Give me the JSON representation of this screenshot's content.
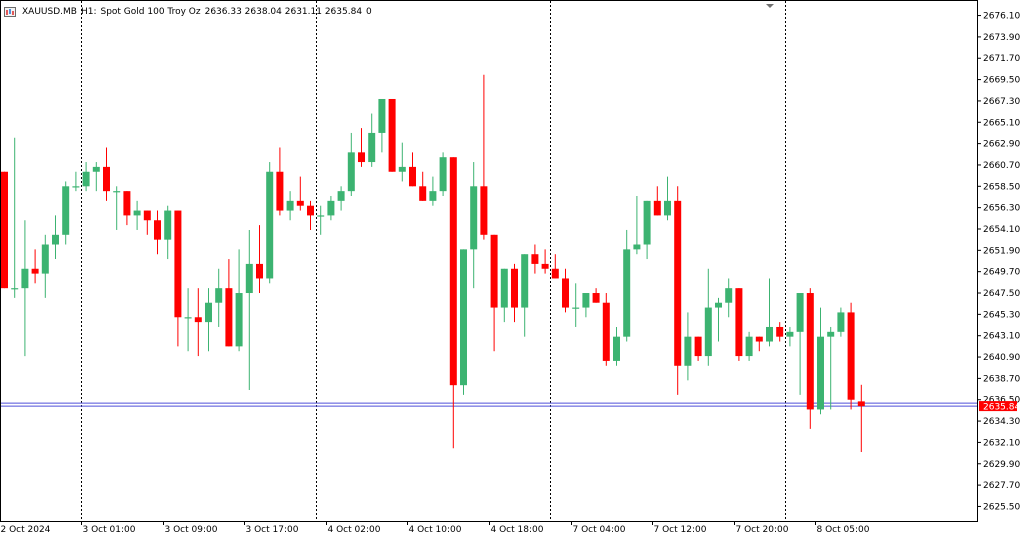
{
  "window": {
    "symbol": "XAUUSD.MB",
    "timeframe": "H1:",
    "description": "Spot Gold 100 Troy Oz",
    "ohlc": "2636.33 2638.04 2631.11 2635.84",
    "extra": "0"
  },
  "colors": {
    "bull": "#3cb371",
    "bear": "#ff0000",
    "bid_line": "#4f4fd9",
    "price_tag": "#ff0000"
  },
  "chart_data": {
    "type": "candlestick",
    "ylim": [
      2624.0,
      2677.6
    ],
    "y_ticks": [
      "2676.10",
      "2673.90",
      "2671.70",
      "2669.50",
      "2667.30",
      "2665.10",
      "2662.90",
      "2660.70",
      "2658.50",
      "2656.30",
      "2654.10",
      "2651.90",
      "2649.70",
      "2647.50",
      "2645.30",
      "2643.10",
      "2640.90",
      "2638.70",
      "2636.50",
      "2634.30",
      "2632.10",
      "2629.90",
      "2627.70",
      "2625.50"
    ],
    "x_labels": [
      "2 Oct 2024",
      "3 Oct 01:00",
      "3 Oct 09:00",
      "3 Oct 17:00",
      "4 Oct 02:00",
      "4 Oct 10:00",
      "4 Oct 18:00",
      "7 Oct 04:00",
      "7 Oct 12:00",
      "7 Oct 20:00",
      "8 Oct 05:00"
    ],
    "current_price": "2635.84",
    "bid_line": 2636.0,
    "separators": [
      8,
      31,
      54,
      77
    ],
    "candles": [
      {
        "o": 2660.0,
        "h": 2660.0,
        "l": 2648.0,
        "c": 2648.0
      },
      {
        "o": 2648.0,
        "h": 2663.5,
        "l": 2647.0,
        "c": 2648.0
      },
      {
        "o": 2648.0,
        "h": 2655.0,
        "l": 2641.0,
        "c": 2650.0
      },
      {
        "o": 2650.0,
        "h": 2652.0,
        "l": 2648.5,
        "c": 2649.5
      },
      {
        "o": 2649.5,
        "h": 2653.5,
        "l": 2647.0,
        "c": 2652.5
      },
      {
        "o": 2652.5,
        "h": 2655.5,
        "l": 2651.0,
        "c": 2653.5
      },
      {
        "o": 2653.5,
        "h": 2659.0,
        "l": 2652.5,
        "c": 2658.5
      },
      {
        "o": 2658.5,
        "h": 2660.0,
        "l": 2658.0,
        "c": 2658.5
      },
      {
        "o": 2658.5,
        "h": 2661.0,
        "l": 2658.0,
        "c": 2660.0
      },
      {
        "o": 2660.0,
        "h": 2661.0,
        "l": 2658.0,
        "c": 2660.5
      },
      {
        "o": 2660.5,
        "h": 2662.5,
        "l": 2657.0,
        "c": 2658.0
      },
      {
        "o": 2658.0,
        "h": 2658.5,
        "l": 2654.0,
        "c": 2658.0
      },
      {
        "o": 2658.0,
        "h": 2658.0,
        "l": 2654.5,
        "c": 2655.5
      },
      {
        "o": 2655.5,
        "h": 2657.0,
        "l": 2654.0,
        "c": 2656.0
      },
      {
        "o": 2656.0,
        "h": 2656.0,
        "l": 2653.5,
        "c": 2655.0
      },
      {
        "o": 2655.0,
        "h": 2656.0,
        "l": 2651.5,
        "c": 2653.0
      },
      {
        "o": 2653.0,
        "h": 2656.5,
        "l": 2651.0,
        "c": 2656.0
      },
      {
        "o": 2656.0,
        "h": 2656.0,
        "l": 2642.0,
        "c": 2645.0
      },
      {
        "o": 2645.0,
        "h": 2648.0,
        "l": 2641.5,
        "c": 2645.0
      },
      {
        "o": 2645.0,
        "h": 2648.0,
        "l": 2641.0,
        "c": 2644.5
      },
      {
        "o": 2644.5,
        "h": 2648.0,
        "l": 2641.5,
        "c": 2646.5
      },
      {
        "o": 2646.5,
        "h": 2650.0,
        "l": 2644.0,
        "c": 2648.0
      },
      {
        "o": 2648.0,
        "h": 2651.0,
        "l": 2642.0,
        "c": 2642.0
      },
      {
        "o": 2642.0,
        "h": 2652.0,
        "l": 2641.5,
        "c": 2647.5
      },
      {
        "o": 2647.5,
        "h": 2654.0,
        "l": 2637.5,
        "c": 2650.5
      },
      {
        "o": 2650.5,
        "h": 2654.5,
        "l": 2647.5,
        "c": 2649.0
      },
      {
        "o": 2649.0,
        "h": 2661.0,
        "l": 2648.5,
        "c": 2660.0
      },
      {
        "o": 2660.0,
        "h": 2662.5,
        "l": 2655.5,
        "c": 2656.0
      },
      {
        "o": 2656.0,
        "h": 2658.0,
        "l": 2655.0,
        "c": 2657.0
      },
      {
        "o": 2657.0,
        "h": 2659.5,
        "l": 2656.0,
        "c": 2656.5
      },
      {
        "o": 2656.5,
        "h": 2657.0,
        "l": 2654.0,
        "c": 2655.5
      },
      {
        "o": 2655.5,
        "h": 2656.5,
        "l": 2653.5,
        "c": 2655.5
      },
      {
        "o": 2655.5,
        "h": 2657.5,
        "l": 2655.0,
        "c": 2657.0
      },
      {
        "o": 2657.0,
        "h": 2658.5,
        "l": 2656.0,
        "c": 2658.0
      },
      {
        "o": 2658.0,
        "h": 2664.0,
        "l": 2657.5,
        "c": 2662.0
      },
      {
        "o": 2662.0,
        "h": 2664.5,
        "l": 2660.5,
        "c": 2661.0
      },
      {
        "o": 2661.0,
        "h": 2666.0,
        "l": 2660.5,
        "c": 2664.0
      },
      {
        "o": 2664.0,
        "h": 2667.5,
        "l": 2662.0,
        "c": 2667.5
      },
      {
        "o": 2667.5,
        "h": 2667.5,
        "l": 2660.0,
        "c": 2660.0
      },
      {
        "o": 2660.0,
        "h": 2663.0,
        "l": 2659.0,
        "c": 2660.5
      },
      {
        "o": 2660.5,
        "h": 2662.0,
        "l": 2658.5,
        "c": 2658.5
      },
      {
        "o": 2658.5,
        "h": 2660.0,
        "l": 2657.0,
        "c": 2657.0
      },
      {
        "o": 2657.0,
        "h": 2659.5,
        "l": 2656.5,
        "c": 2658.0
      },
      {
        "o": 2658.0,
        "h": 2662.0,
        "l": 2657.5,
        "c": 2661.5
      },
      {
        "o": 2661.5,
        "h": 2661.5,
        "l": 2631.5,
        "c": 2638.0
      },
      {
        "o": 2638.0,
        "h": 2652.0,
        "l": 2637.0,
        "c": 2652.0
      },
      {
        "o": 2652.0,
        "h": 2661.0,
        "l": 2648.0,
        "c": 2658.5
      },
      {
        "o": 2658.5,
        "h": 2670.0,
        "l": 2653.0,
        "c": 2653.5
      },
      {
        "o": 2653.5,
        "h": 2653.5,
        "l": 2641.5,
        "c": 2646.0
      },
      {
        "o": 2646.0,
        "h": 2650.0,
        "l": 2644.5,
        "c": 2650.0
      },
      {
        "o": 2650.0,
        "h": 2650.5,
        "l": 2644.5,
        "c": 2646.0
      },
      {
        "o": 2646.0,
        "h": 2651.5,
        "l": 2643.0,
        "c": 2651.5
      },
      {
        "o": 2651.5,
        "h": 2652.5,
        "l": 2649.5,
        "c": 2650.5
      },
      {
        "o": 2650.5,
        "h": 2652.0,
        "l": 2649.5,
        "c": 2650.0
      },
      {
        "o": 2650.0,
        "h": 2651.5,
        "l": 2649.0,
        "c": 2649.0
      },
      {
        "o": 2649.0,
        "h": 2650.0,
        "l": 2645.5,
        "c": 2646.0
      },
      {
        "o": 2646.0,
        "h": 2648.5,
        "l": 2644.0,
        "c": 2646.0
      },
      {
        "o": 2646.0,
        "h": 2647.5,
        "l": 2645.0,
        "c": 2647.5
      },
      {
        "o": 2647.5,
        "h": 2648.0,
        "l": 2646.5,
        "c": 2646.5
      },
      {
        "o": 2646.5,
        "h": 2647.5,
        "l": 2640.0,
        "c": 2640.5
      },
      {
        "o": 2640.5,
        "h": 2644.0,
        "l": 2640.0,
        "c": 2643.0
      },
      {
        "o": 2643.0,
        "h": 2654.0,
        "l": 2642.5,
        "c": 2652.0
      },
      {
        "o": 2652.0,
        "h": 2657.5,
        "l": 2651.5,
        "c": 2652.5
      },
      {
        "o": 2652.5,
        "h": 2657.0,
        "l": 2651.0,
        "c": 2657.0
      },
      {
        "o": 2657.0,
        "h": 2658.5,
        "l": 2655.5,
        "c": 2655.5
      },
      {
        "o": 2655.5,
        "h": 2659.5,
        "l": 2655.0,
        "c": 2657.0
      },
      {
        "o": 2657.0,
        "h": 2658.5,
        "l": 2637.0,
        "c": 2640.0
      },
      {
        "o": 2640.0,
        "h": 2645.5,
        "l": 2638.5,
        "c": 2643.0
      },
      {
        "o": 2643.0,
        "h": 2643.0,
        "l": 2640.5,
        "c": 2641.0
      },
      {
        "o": 2641.0,
        "h": 2650.0,
        "l": 2640.0,
        "c": 2646.0
      },
      {
        "o": 2646.0,
        "h": 2647.0,
        "l": 2642.5,
        "c": 2646.5
      },
      {
        "o": 2646.5,
        "h": 2649.0,
        "l": 2645.0,
        "c": 2648.0
      },
      {
        "o": 2648.0,
        "h": 2648.0,
        "l": 2640.5,
        "c": 2641.0
      },
      {
        "o": 2641.0,
        "h": 2643.5,
        "l": 2640.5,
        "c": 2643.0
      },
      {
        "o": 2643.0,
        "h": 2643.0,
        "l": 2641.5,
        "c": 2642.5
      },
      {
        "o": 2642.5,
        "h": 2649.0,
        "l": 2642.0,
        "c": 2644.0
      },
      {
        "o": 2644.0,
        "h": 2644.5,
        "l": 2642.5,
        "c": 2643.0
      },
      {
        "o": 2643.0,
        "h": 2644.0,
        "l": 2642.0,
        "c": 2643.5
      },
      {
        "o": 2643.5,
        "h": 2647.5,
        "l": 2637.0,
        "c": 2647.5
      },
      {
        "o": 2647.5,
        "h": 2648.0,
        "l": 2633.5,
        "c": 2635.5
      },
      {
        "o": 2635.5,
        "h": 2646.0,
        "l": 2635.0,
        "c": 2643.0
      },
      {
        "o": 2643.0,
        "h": 2644.0,
        "l": 2635.5,
        "c": 2643.5
      },
      {
        "o": 2643.5,
        "h": 2646.0,
        "l": 2643.0,
        "c": 2645.5
      },
      {
        "o": 2645.5,
        "h": 2646.5,
        "l": 2635.5,
        "c": 2636.5
      },
      {
        "o": 2636.33,
        "h": 2638.04,
        "l": 2631.11,
        "c": 2635.84
      }
    ]
  }
}
